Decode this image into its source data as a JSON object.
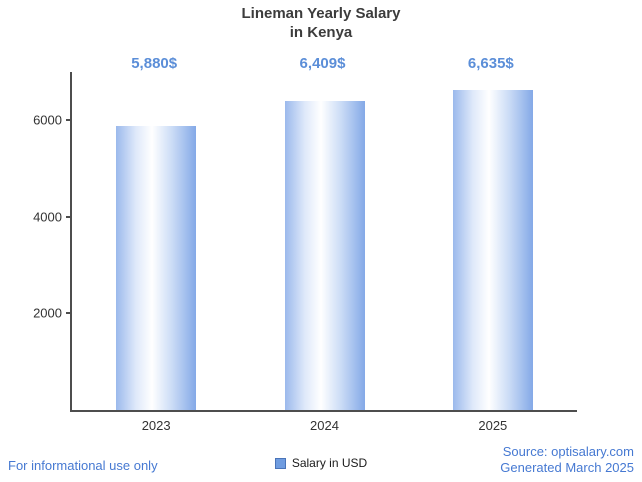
{
  "title": {
    "line1": "Lineman Yearly Salary",
    "line2": "in Kenya"
  },
  "legend": {
    "label": "Salary in USD"
  },
  "footer": {
    "left": "For informational use only",
    "source": "Source: optisalary.com",
    "generated": "Generated March 2025"
  },
  "colors": {
    "accent_blue": "#5b8ed8",
    "footer_blue": "#4679d2",
    "axis": "#4d4d4d",
    "bar_edge": "#84a9e7",
    "bar_highlight": "#ffffff",
    "legend_swatch": "#6f9ce0"
  },
  "chart_data": {
    "type": "bar",
    "title": "Lineman Yearly Salary in Kenya",
    "categories": [
      "2023",
      "2024",
      "2025"
    ],
    "values": [
      5880,
      6409,
      6635
    ],
    "value_labels": [
      "5,880$",
      "6,409$",
      "6,635$"
    ],
    "series": [
      {
        "name": "Salary in USD",
        "values": [
          5880,
          6409,
          6635
        ]
      }
    ],
    "xlabel": "",
    "ylabel": "",
    "ylim": [
      0,
      7000
    ],
    "yticks": [
      2000,
      4000,
      6000
    ],
    "grid": false,
    "legend_position": "bottom"
  }
}
